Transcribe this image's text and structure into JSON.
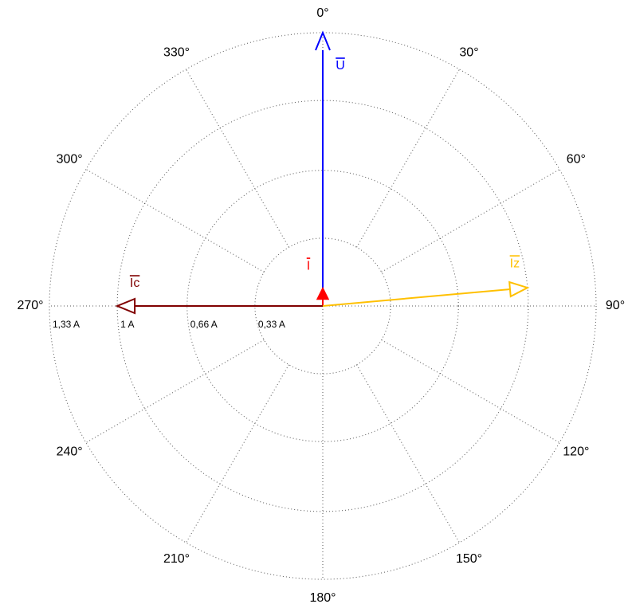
{
  "chart_data": {
    "type": "phasor",
    "rlim": [
      0,
      1.33
    ],
    "rticks": [
      {
        "value": 0.33,
        "label": "0,33 A"
      },
      {
        "value": 0.66,
        "label": "0,66 A"
      },
      {
        "value": 1,
        "label": "1 A"
      },
      {
        "value": 1.33,
        "label": "1,33 A"
      }
    ],
    "angleticks": [
      {
        "value": 0,
        "label": "0°"
      },
      {
        "value": 30,
        "label": "30°"
      },
      {
        "value": 60,
        "label": "60°"
      },
      {
        "value": 90,
        "label": "90°"
      },
      {
        "value": 120,
        "label": "120°"
      },
      {
        "value": 150,
        "label": "150°"
      },
      {
        "value": 180,
        "label": "180°"
      },
      {
        "value": 210,
        "label": "210°"
      },
      {
        "value": 240,
        "label": "240°"
      },
      {
        "value": 270,
        "label": "270°"
      },
      {
        "value": 300,
        "label": "300°"
      },
      {
        "value": 330,
        "label": "330°"
      }
    ],
    "grid": true,
    "series": [
      {
        "name": "U",
        "color": "#0000ff",
        "magnitude": 1.33,
        "angle": 0
      },
      {
        "name": "I",
        "color": "#ff0000",
        "magnitude": 0.085,
        "angle": 0
      },
      {
        "name": "Ic",
        "color": "#800000",
        "magnitude": 1.0,
        "angle": 270
      },
      {
        "name": "Iz",
        "color": "#ffc000",
        "magnitude": 1.0,
        "angle": 84.9
      }
    ]
  }
}
